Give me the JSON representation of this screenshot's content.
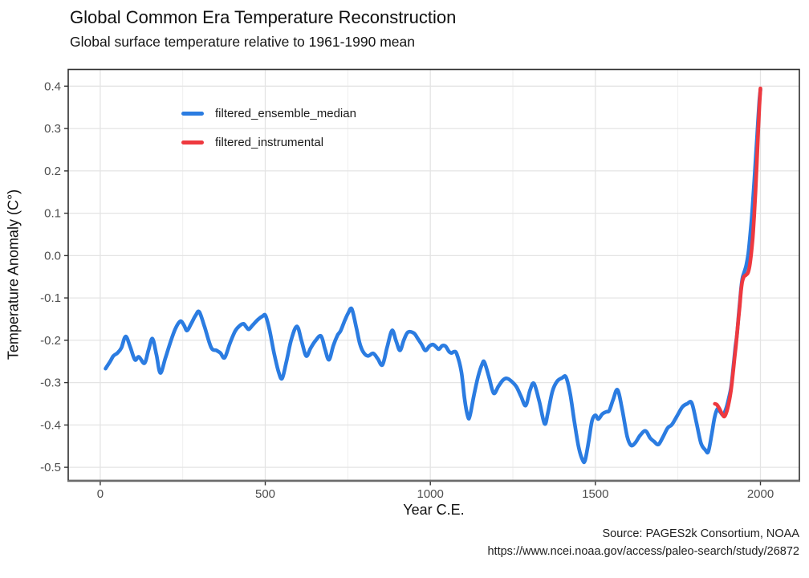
{
  "header": {
    "title": "Global Common Era Temperature Reconstruction",
    "subtitle": "Global surface temperature relative to 1961-1990 mean"
  },
  "caption": {
    "line1": "Source: PAGES2k Consortium, NOAA",
    "line2": "https://www.ncei.noaa.gov/access/paleo-search/study/26872"
  },
  "chart_data": {
    "type": "line",
    "title": "Global Common Era Temperature Reconstruction",
    "subtitle": "Global surface temperature relative to 1961-1990 mean",
    "xlabel": "Year C.E.",
    "ylabel": "Temperature Anomaly (C°)",
    "legend_position": "inside-top-left",
    "grid": true,
    "xlim": [
      -97,
      2118
    ],
    "ylim": [
      -0.531,
      0.4395
    ],
    "x_ticks": [
      0,
      500,
      1000,
      1500,
      2000
    ],
    "x_minor_ticks": [
      250,
      750,
      1250,
      1750
    ],
    "y_ticks": [
      "0.4",
      "0.3",
      "0.2",
      "0.1",
      "0.0",
      "-0.1",
      "-0.2",
      "-0.3",
      "-0.4",
      "-0.5"
    ],
    "colors": {
      "grid_major": "#e4e4e4",
      "grid_minor": "#ededed",
      "panel_border": "#2f2f2f",
      "axis_line": "#6b6b6b",
      "tick": "#333333",
      "tick_label": "#4d4d4d"
    },
    "series": [
      {
        "name": "filtered_ensemble_median",
        "color": "#2b7ce1",
        "points": [
          [
            16,
            -0.267
          ],
          [
            30,
            -0.25
          ],
          [
            40,
            -0.237
          ],
          [
            52,
            -0.23
          ],
          [
            64,
            -0.218
          ],
          [
            77,
            -0.191
          ],
          [
            91,
            -0.216
          ],
          [
            105,
            -0.246
          ],
          [
            117,
            -0.239
          ],
          [
            134,
            -0.254
          ],
          [
            146,
            -0.224
          ],
          [
            158,
            -0.196
          ],
          [
            170,
            -0.233
          ],
          [
            182,
            -0.277
          ],
          [
            197,
            -0.243
          ],
          [
            212,
            -0.206
          ],
          [
            228,
            -0.172
          ],
          [
            243,
            -0.155
          ],
          [
            254,
            -0.165
          ],
          [
            263,
            -0.177
          ],
          [
            276,
            -0.16
          ],
          [
            289,
            -0.141
          ],
          [
            300,
            -0.133
          ],
          [
            316,
            -0.168
          ],
          [
            336,
            -0.217
          ],
          [
            352,
            -0.224
          ],
          [
            364,
            -0.23
          ],
          [
            377,
            -0.241
          ],
          [
            393,
            -0.207
          ],
          [
            409,
            -0.178
          ],
          [
            422,
            -0.166
          ],
          [
            434,
            -0.161
          ],
          [
            442,
            -0.168
          ],
          [
            450,
            -0.174
          ],
          [
            462,
            -0.164
          ],
          [
            478,
            -0.151
          ],
          [
            492,
            -0.143
          ],
          [
            501,
            -0.142
          ],
          [
            513,
            -0.176
          ],
          [
            526,
            -0.228
          ],
          [
            540,
            -0.274
          ],
          [
            551,
            -0.29
          ],
          [
            564,
            -0.25
          ],
          [
            579,
            -0.198
          ],
          [
            596,
            -0.167
          ],
          [
            610,
            -0.202
          ],
          [
            624,
            -0.237
          ],
          [
            637,
            -0.219
          ],
          [
            652,
            -0.201
          ],
          [
            669,
            -0.19
          ],
          [
            681,
            -0.221
          ],
          [
            693,
            -0.246
          ],
          [
            706,
            -0.213
          ],
          [
            719,
            -0.188
          ],
          [
            728,
            -0.178
          ],
          [
            740,
            -0.155
          ],
          [
            751,
            -0.136
          ],
          [
            762,
            -0.126
          ],
          [
            775,
            -0.167
          ],
          [
            786,
            -0.207
          ],
          [
            797,
            -0.228
          ],
          [
            811,
            -0.237
          ],
          [
            827,
            -0.231
          ],
          [
            841,
            -0.244
          ],
          [
            855,
            -0.258
          ],
          [
            869,
            -0.217
          ],
          [
            884,
            -0.177
          ],
          [
            896,
            -0.201
          ],
          [
            908,
            -0.224
          ],
          [
            920,
            -0.199
          ],
          [
            932,
            -0.181
          ],
          [
            950,
            -0.183
          ],
          [
            962,
            -0.196
          ],
          [
            973,
            -0.209
          ],
          [
            985,
            -0.224
          ],
          [
            997,
            -0.214
          ],
          [
            1008,
            -0.21
          ],
          [
            1018,
            -0.216
          ],
          [
            1026,
            -0.221
          ],
          [
            1036,
            -0.213
          ],
          [
            1046,
            -0.214
          ],
          [
            1056,
            -0.226
          ],
          [
            1064,
            -0.23
          ],
          [
            1072,
            -0.227
          ],
          [
            1080,
            -0.232
          ],
          [
            1094,
            -0.274
          ],
          [
            1104,
            -0.34
          ],
          [
            1114,
            -0.381
          ],
          [
            1120,
            -0.378
          ],
          [
            1132,
            -0.33
          ],
          [
            1145,
            -0.285
          ],
          [
            1157,
            -0.256
          ],
          [
            1164,
            -0.252
          ],
          [
            1178,
            -0.288
          ],
          [
            1192,
            -0.325
          ],
          [
            1206,
            -0.309
          ],
          [
            1220,
            -0.294
          ],
          [
            1232,
            -0.29
          ],
          [
            1246,
            -0.297
          ],
          [
            1261,
            -0.31
          ],
          [
            1275,
            -0.333
          ],
          [
            1289,
            -0.354
          ],
          [
            1302,
            -0.318
          ],
          [
            1314,
            -0.302
          ],
          [
            1330,
            -0.344
          ],
          [
            1346,
            -0.397
          ],
          [
            1356,
            -0.372
          ],
          [
            1370,
            -0.32
          ],
          [
            1384,
            -0.297
          ],
          [
            1399,
            -0.289
          ],
          [
            1411,
            -0.287
          ],
          [
            1424,
            -0.328
          ],
          [
            1437,
            -0.395
          ],
          [
            1450,
            -0.455
          ],
          [
            1462,
            -0.484
          ],
          [
            1469,
            -0.483
          ],
          [
            1480,
            -0.437
          ],
          [
            1490,
            -0.39
          ],
          [
            1500,
            -0.377
          ],
          [
            1509,
            -0.386
          ],
          [
            1521,
            -0.374
          ],
          [
            1533,
            -0.369
          ],
          [
            1542,
            -0.366
          ],
          [
            1554,
            -0.34
          ],
          [
            1567,
            -0.317
          ],
          [
            1581,
            -0.362
          ],
          [
            1596,
            -0.426
          ],
          [
            1608,
            -0.448
          ],
          [
            1621,
            -0.442
          ],
          [
            1636,
            -0.424
          ],
          [
            1652,
            -0.414
          ],
          [
            1666,
            -0.431
          ],
          [
            1678,
            -0.439
          ],
          [
            1691,
            -0.446
          ],
          [
            1705,
            -0.428
          ],
          [
            1719,
            -0.407
          ],
          [
            1732,
            -0.399
          ],
          [
            1748,
            -0.378
          ],
          [
            1764,
            -0.357
          ],
          [
            1778,
            -0.35
          ],
          [
            1792,
            -0.348
          ],
          [
            1806,
            -0.394
          ],
          [
            1820,
            -0.443
          ],
          [
            1833,
            -0.459
          ],
          [
            1842,
            -0.463
          ],
          [
            1852,
            -0.424
          ],
          [
            1861,
            -0.383
          ],
          [
            1870,
            -0.362
          ],
          [
            1879,
            -0.37
          ],
          [
            1887,
            -0.376
          ],
          [
            1896,
            -0.361
          ],
          [
            1904,
            -0.337
          ],
          [
            1911,
            -0.311
          ],
          [
            1918,
            -0.263
          ],
          [
            1924,
            -0.216
          ],
          [
            1929,
            -0.186
          ],
          [
            1934,
            -0.141
          ],
          [
            1938,
            -0.106
          ],
          [
            1942,
            -0.073
          ],
          [
            1946,
            -0.051
          ],
          [
            1951,
            -0.039
          ],
          [
            1957,
            -0.023
          ],
          [
            1963,
            0.004
          ],
          [
            1969,
            0.049
          ],
          [
            1975,
            0.104
          ],
          [
            1981,
            0.174
          ],
          [
            1986,
            0.234
          ],
          [
            1990,
            0.284
          ],
          [
            1994,
            0.334
          ],
          [
            1997,
            0.368
          ],
          [
            2000,
            0.392
          ]
        ]
      },
      {
        "name": "filtered_instrumental",
        "color": "#ee393f",
        "points": [
          [
            1862,
            -0.35
          ],
          [
            1868,
            -0.352
          ],
          [
            1876,
            -0.362
          ],
          [
            1884,
            -0.374
          ],
          [
            1891,
            -0.38
          ],
          [
            1898,
            -0.368
          ],
          [
            1905,
            -0.345
          ],
          [
            1911,
            -0.317
          ],
          [
            1917,
            -0.277
          ],
          [
            1922,
            -0.239
          ],
          [
            1927,
            -0.204
          ],
          [
            1932,
            -0.161
          ],
          [
            1937,
            -0.121
          ],
          [
            1941,
            -0.085
          ],
          [
            1945,
            -0.062
          ],
          [
            1950,
            -0.05
          ],
          [
            1956,
            -0.046
          ],
          [
            1962,
            -0.041
          ],
          [
            1967,
            -0.026
          ],
          [
            1972,
            0.004
          ],
          [
            1977,
            0.044
          ],
          [
            1981,
            0.094
          ],
          [
            1985,
            0.149
          ],
          [
            1989,
            0.214
          ],
          [
            1993,
            0.289
          ],
          [
            1997,
            0.354
          ],
          [
            2000,
            0.395
          ]
        ]
      }
    ]
  }
}
